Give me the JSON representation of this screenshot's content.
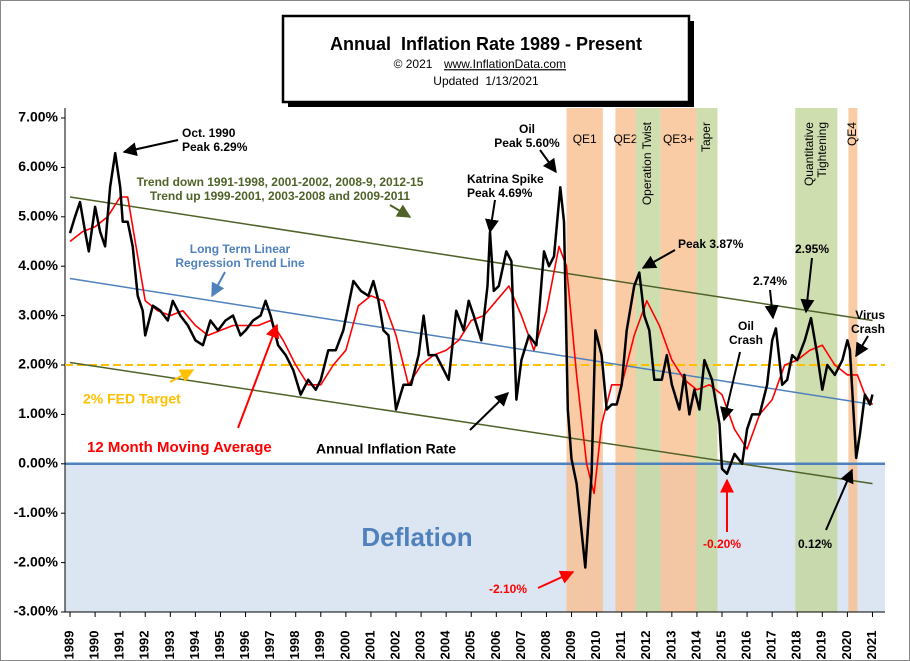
{
  "chart_data": {
    "type": "line",
    "title": "Annual  Inflation Rate 1989 - Present",
    "copyright": "© 2021",
    "website": "www.InflationData.com",
    "updated": "Updated  1/13/2021",
    "xlim": [
      1988.8,
      2021.5
    ],
    "ylim": [
      -3,
      7
    ],
    "xticks": [
      1989,
      1990,
      1991,
      1992,
      1993,
      1994,
      1995,
      1996,
      1997,
      1998,
      1999,
      2000,
      2001,
      2002,
      2003,
      2004,
      2005,
      2006,
      2007,
      2008,
      2009,
      2010,
      2011,
      2012,
      2013,
      2014,
      2015,
      2016,
      2017,
      2018,
      2019,
      2020,
      2021
    ],
    "yticks": [
      {
        "value": -3,
        "label": "-3.00%"
      },
      {
        "value": -2,
        "label": "-2.00%"
      },
      {
        "value": -1,
        "label": "-1.00%"
      },
      {
        "value": 0,
        "label": "0.00%"
      },
      {
        "value": 1,
        "label": "1.00%"
      },
      {
        "value": 2,
        "label": "2.00%"
      },
      {
        "value": 3,
        "label": "3.00%"
      },
      {
        "value": 4,
        "label": "4.00%"
      },
      {
        "value": 5,
        "label": "5.00%"
      },
      {
        "value": 6,
        "label": "6.00%"
      },
      {
        "value": 7,
        "label": "7.00%"
      }
    ],
    "deflation": {
      "label": "Deflation",
      "color": "#dce6f2"
    },
    "bands": [
      {
        "lines": [
          "QE1"
        ],
        "x": [
          2008.8,
          2010.25
        ],
        "color": "#f9bf8f",
        "rotate": false
      },
      {
        "lines": [
          "QE2"
        ],
        "x": [
          2010.75,
          2011.55
        ],
        "color": "#f9bf8f",
        "rotate": false
      },
      {
        "lines": [
          "Operation Twist"
        ],
        "x": [
          2011.55,
          2012.55
        ],
        "color": "#c3d69b",
        "rotate": true
      },
      {
        "lines": [
          "QE3+"
        ],
        "x": [
          2012.55,
          2013.98
        ],
        "color": "#f9bf8f",
        "rotate": false
      },
      {
        "lines": [
          "Taper"
        ],
        "x": [
          2013.98,
          2014.82
        ],
        "color": "#c3d69b",
        "rotate": true
      },
      {
        "lines": [
          "Quantitative",
          "Tightening"
        ],
        "x": [
          2017.92,
          2019.6
        ],
        "color": "#c3d69b",
        "rotate": true
      },
      {
        "lines": [
          "QE4"
        ],
        "x": [
          2020.04,
          2020.4
        ],
        "color": "#f9bf8f",
        "rotate": true
      }
    ],
    "trend_lines": [
      {
        "color": "#4f6228",
        "x": [
          1989,
          2021
        ],
        "values": [
          5.4,
          2.9
        ]
      },
      {
        "color": "#4f6228",
        "x": [
          1989,
          2021
        ],
        "values": [
          2.05,
          -0.4
        ]
      },
      {
        "color": "#4f81bd",
        "x": [
          1989,
          2021
        ],
        "values": [
          3.75,
          1.2
        ]
      }
    ],
    "fed_target": {
      "value": 2,
      "color": "#ffc000"
    },
    "series": [
      {
        "color": "#000000",
        "width": 2.5,
        "x": [
          1989.0,
          1989.2,
          1989.4,
          1989.6,
          1989.75,
          1990.0,
          1990.2,
          1990.4,
          1990.6,
          1990.8,
          1991.0,
          1991.1,
          1991.3,
          1991.5,
          1991.7,
          1991.9,
          1992.0,
          1992.3,
          1992.6,
          1992.9,
          1993.1,
          1993.4,
          1993.7,
          1994.0,
          1994.3,
          1994.6,
          1994.9,
          1995.2,
          1995.5,
          1995.8,
          1996.0,
          1996.3,
          1996.6,
          1996.8,
          1997.0,
          1997.3,
          1997.6,
          1997.9,
          1998.2,
          1998.5,
          1998.8,
          1999.0,
          1999.3,
          1999.6,
          1999.9,
          2000.1,
          2000.3,
          2000.6,
          2000.9,
          2001.1,
          2001.3,
          2001.5,
          2001.7,
          2001.9,
          2002.0,
          2002.3,
          2002.6,
          2002.9,
          2003.1,
          2003.3,
          2003.6,
          2003.9,
          2004.1,
          2004.4,
          2004.7,
          2004.9,
          2005.1,
          2005.4,
          2005.65,
          2005.75,
          2005.9,
          2006.1,
          2006.4,
          2006.6,
          2006.8,
          2007.0,
          2007.3,
          2007.6,
          2007.9,
          2008.1,
          2008.3,
          2008.55,
          2008.7,
          2008.85,
          2009.0,
          2009.2,
          2009.55,
          2009.8,
          2009.95,
          2010.2,
          2010.4,
          2010.6,
          2010.8,
          2011.0,
          2011.2,
          2011.5,
          2011.7,
          2011.9,
          2012.1,
          2012.3,
          2012.6,
          2012.8,
          2013.0,
          2013.3,
          2013.5,
          2013.7,
          2013.9,
          2014.1,
          2014.3,
          2014.6,
          2014.9,
          2015.0,
          2015.2,
          2015.5,
          2015.8,
          2016.0,
          2016.2,
          2016.5,
          2016.8,
          2017.0,
          2017.15,
          2017.4,
          2017.6,
          2017.8,
          2018.0,
          2018.3,
          2018.55,
          2018.8,
          2019.0,
          2019.2,
          2019.5,
          2019.8,
          2020.0,
          2020.1,
          2020.35,
          2020.5,
          2020.7,
          2020.9,
          2021.0
        ],
        "values": [
          4.67,
          5.0,
          5.3,
          4.7,
          4.3,
          5.2,
          4.7,
          4.4,
          5.6,
          6.29,
          5.6,
          4.9,
          4.9,
          4.4,
          3.4,
          3.1,
          2.6,
          3.2,
          3.1,
          2.9,
          3.3,
          3.0,
          2.8,
          2.5,
          2.4,
          2.9,
          2.7,
          2.9,
          3.0,
          2.6,
          2.7,
          2.9,
          3.0,
          3.3,
          3.0,
          2.4,
          2.2,
          1.9,
          1.4,
          1.7,
          1.5,
          1.7,
          2.3,
          2.3,
          2.7,
          3.2,
          3.7,
          3.5,
          3.4,
          3.7,
          3.3,
          2.7,
          2.6,
          1.6,
          1.1,
          1.6,
          1.6,
          2.2,
          3.0,
          2.2,
          2.2,
          1.9,
          1.7,
          3.1,
          2.7,
          3.3,
          3.0,
          2.5,
          3.6,
          4.69,
          3.5,
          3.6,
          4.3,
          4.1,
          1.3,
          2.1,
          2.6,
          2.4,
          4.3,
          4.0,
          4.2,
          5.6,
          4.9,
          1.1,
          0.1,
          -0.4,
          -2.1,
          -0.2,
          2.7,
          2.2,
          1.1,
          1.2,
          1.2,
          1.6,
          2.7,
          3.6,
          3.87,
          3.0,
          2.7,
          1.7,
          1.7,
          2.2,
          1.6,
          1.1,
          1.8,
          1.0,
          1.5,
          1.1,
          2.1,
          1.7,
          0.8,
          -0.1,
          -0.2,
          0.2,
          0.0,
          0.7,
          1.0,
          1.0,
          1.6,
          2.5,
          2.74,
          1.6,
          1.7,
          2.2,
          2.1,
          2.5,
          2.95,
          2.2,
          1.5,
          2.0,
          1.8,
          2.1,
          2.5,
          2.3,
          0.12,
          0.6,
          1.4,
          1.2,
          1.4
        ]
      },
      {
        "color": "#ff0000",
        "width": 1.6,
        "x": [
          1989.0,
          1989.5,
          1990.0,
          1990.5,
          1991.0,
          1991.3,
          1991.7,
          1992.0,
          1992.5,
          1993.0,
          1993.5,
          1994.0,
          1994.5,
          1995.0,
          1995.5,
          1996.0,
          1996.5,
          1997.0,
          1997.5,
          1998.0,
          1998.5,
          1999.0,
          1999.5,
          2000.0,
          2000.5,
          2001.0,
          2001.5,
          2002.0,
          2002.5,
          2003.0,
          2003.5,
          2004.0,
          2004.5,
          2005.0,
          2005.5,
          2006.0,
          2006.5,
          2007.0,
          2007.5,
          2008.0,
          2008.5,
          2008.8,
          2009.2,
          2009.6,
          2009.9,
          2010.2,
          2010.6,
          2011.0,
          2011.5,
          2012.0,
          2012.5,
          2013.0,
          2013.5,
          2014.0,
          2014.5,
          2015.0,
          2015.5,
          2016.0,
          2016.5,
          2017.0,
          2017.5,
          2018.0,
          2018.5,
          2019.0,
          2019.5,
          2020.0,
          2020.4,
          2020.7,
          2021.0
        ],
        "values": [
          4.5,
          4.7,
          4.8,
          5.0,
          5.4,
          5.4,
          4.2,
          3.3,
          3.1,
          3.0,
          3.1,
          2.8,
          2.6,
          2.7,
          2.8,
          2.8,
          2.8,
          2.9,
          2.5,
          2.0,
          1.6,
          1.6,
          2.0,
          2.3,
          3.2,
          3.4,
          3.3,
          2.6,
          1.6,
          2.0,
          2.2,
          2.3,
          2.5,
          2.9,
          3.0,
          3.3,
          3.6,
          3.0,
          2.3,
          3.1,
          4.4,
          4.0,
          1.8,
          0.0,
          -0.6,
          0.8,
          1.6,
          1.6,
          2.6,
          3.3,
          2.8,
          2.1,
          1.7,
          1.5,
          1.6,
          1.4,
          0.7,
          0.3,
          1.0,
          1.3,
          2.0,
          2.1,
          2.3,
          2.4,
          2.0,
          1.8,
          1.8,
          1.4,
          1.2
        ]
      }
    ],
    "annotations": [
      {
        "lines": [
          "Oct. 1990",
          "Peak 6.29%"
        ],
        "color": "#000000"
      },
      {
        "lines": [
          "Trend down 1991-1998,  2001-2002,  2008-9,  2012-15",
          "Trend  up  1999-2001,  2003-2008  and 2009-2011"
        ],
        "color": "#4f6228"
      },
      {
        "lines": [
          "Katrina Spike",
          "Peak 4.69%"
        ],
        "color": "#000000"
      },
      {
        "lines": [
          "Oil",
          "Peak 5.60%"
        ],
        "color": "#000000"
      },
      {
        "lines": [
          "Long Term Linear",
          "Regression Trend Line"
        ],
        "color": "#4f81bd"
      },
      {
        "lines": [
          "Peak 3.87%"
        ],
        "color": "#000000"
      },
      {
        "lines": [
          "2.74%"
        ],
        "color": "#000000"
      },
      {
        "lines": [
          "2.95%"
        ],
        "color": "#000000"
      },
      {
        "lines": [
          "Oil",
          "Crash"
        ],
        "color": "#000000"
      },
      {
        "lines": [
          "Virus",
          "Crash"
        ],
        "color": "#000000"
      },
      {
        "lines": [
          "2% FED Target"
        ],
        "color": "#ffc000"
      },
      {
        "lines": [
          "12 Month Moving Average"
        ],
        "color": "#ff0000"
      },
      {
        "lines": [
          "Annual Inflation Rate"
        ],
        "color": "#000000"
      },
      {
        "lines": [
          "-2.10%"
        ],
        "color": "#ff0000"
      },
      {
        "lines": [
          "-0.20%"
        ],
        "color": "#ff0000"
      },
      {
        "lines": [
          "0.12%"
        ],
        "color": "#000000"
      }
    ]
  }
}
